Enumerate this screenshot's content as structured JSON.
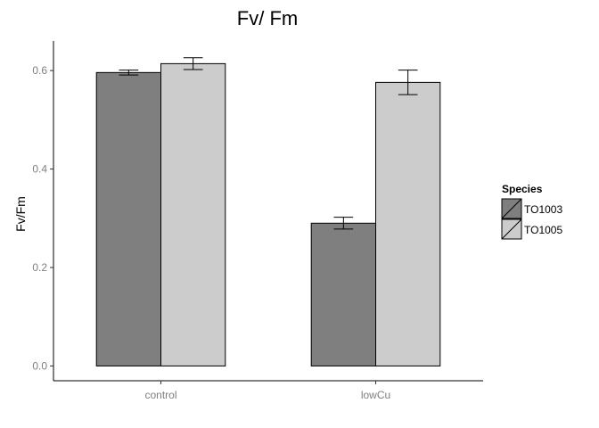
{
  "chart_data": {
    "type": "bar",
    "title": "Fv/ Fm",
    "xlabel": "",
    "ylabel": "Fv/Fm",
    "categories": [
      "control",
      "lowCu"
    ],
    "yticks": [
      "0.0",
      "0.2",
      "0.4",
      "0.6"
    ],
    "ylim": [
      -0.03,
      0.66
    ],
    "grid": false,
    "legend_position": "right",
    "legend_title": "Species",
    "series": [
      {
        "name": "TO1003",
        "color": "#7f7f7f",
        "values": [
          0.596,
          0.29
        ],
        "errors": [
          0.005,
          0.012
        ]
      },
      {
        "name": "TO1005",
        "color": "#cccccc",
        "values": [
          0.614,
          0.576
        ],
        "errors": [
          0.012,
          0.025
        ]
      }
    ]
  }
}
